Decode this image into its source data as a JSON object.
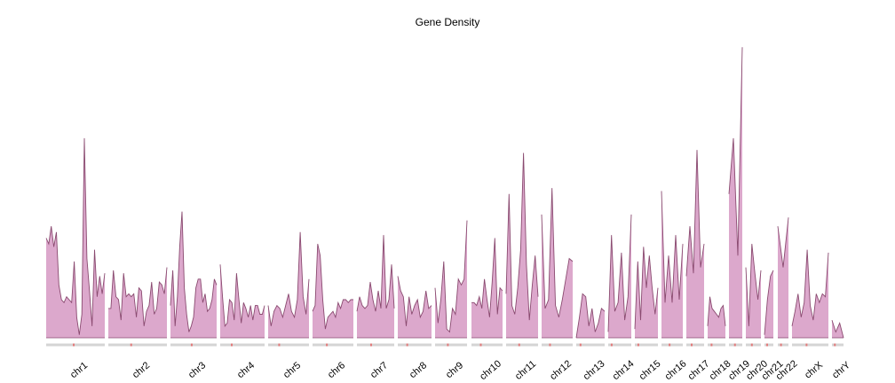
{
  "chart_data": {
    "type": "area",
    "title": "Gene Density",
    "fill_color": "#dca8cc",
    "line_color": "#8a4a70",
    "ideogram_color": "#d4d4d4",
    "centromere_color": "#e07a7a",
    "y_range": [
      0,
      1
    ],
    "chromosomes": [
      {
        "name": "chr1",
        "centromere": 0.47,
        "values": [
          0.34,
          0.32,
          0.38,
          0.31,
          0.36,
          0.18,
          0.13,
          0.12,
          0.14,
          0.13,
          0.12,
          0.26,
          0.07,
          0.01,
          0.08,
          0.68,
          0.27,
          0.16,
          0.04,
          0.3,
          0.14,
          0.21,
          0.15,
          0.22
        ]
      },
      {
        "name": "chr2",
        "centromere": 0.39,
        "values": [
          0.1,
          0.1,
          0.23,
          0.14,
          0.13,
          0.06,
          0.22,
          0.14,
          0.15,
          0.14,
          0.15,
          0.07,
          0.17,
          0.16,
          0.04,
          0.09,
          0.11,
          0.19,
          0.08,
          0.1,
          0.19,
          0.18,
          0.15,
          0.24
        ]
      },
      {
        "name": "chr3",
        "centromere": 0.46,
        "values": [
          0.11,
          0.23,
          0.04,
          0.14,
          0.31,
          0.43,
          0.17,
          0.08,
          0.02,
          0.04,
          0.07,
          0.17,
          0.2,
          0.2,
          0.12,
          0.15,
          0.09,
          0.1,
          0.13,
          0.2,
          0.18
        ]
      },
      {
        "name": "chr4",
        "centromere": 0.26,
        "values": [
          0.25,
          0.14,
          0.04,
          0.05,
          0.13,
          0.12,
          0.06,
          0.22,
          0.13,
          0.05,
          0.12,
          0.1,
          0.07,
          0.11,
          0.06,
          0.11,
          0.11,
          0.08,
          0.08,
          0.11
        ]
      },
      {
        "name": "chr5",
        "centromere": 0.27,
        "values": [
          0.11,
          0.04,
          0.09,
          0.11,
          0.1,
          0.07,
          0.11,
          0.15,
          0.09,
          0.07,
          0.13,
          0.36,
          0.14,
          0.08,
          0.2
        ]
      },
      {
        "name": "chr6",
        "centromere": 0.35,
        "values": [
          0.09,
          0.11,
          0.32,
          0.28,
          0.13,
          0.03,
          0.07,
          0.08,
          0.09,
          0.07,
          0.12,
          0.1,
          0.13,
          0.13,
          0.12,
          0.13,
          0.13
        ]
      },
      {
        "name": "chr7",
        "centromere": 0.38,
        "values": [
          0.09,
          0.14,
          0.11,
          0.1,
          0.11,
          0.19,
          0.13,
          0.09,
          0.16,
          0.1,
          0.35,
          0.1,
          0.13,
          0.25,
          0.1
        ]
      },
      {
        "name": "chr8",
        "centromere": 0.28,
        "values": [
          0.21,
          0.16,
          0.14,
          0.04,
          0.14,
          0.08,
          0.11,
          0.13,
          0.07,
          0.09,
          0.16,
          0.1,
          0.11
        ]
      },
      {
        "name": "chr9",
        "centromere": 0.4,
        "values": [
          0.17,
          0.05,
          0.13,
          0.26,
          0.03,
          0.02,
          0.1,
          0.08,
          0.2,
          0.18,
          0.2,
          0.4
        ]
      },
      {
        "name": "chr10",
        "centromere": 0.3,
        "values": [
          0.12,
          0.12,
          0.11,
          0.14,
          0.1,
          0.2,
          0.13,
          0.07,
          0.19,
          0.34,
          0.08,
          0.17,
          0.16
        ]
      },
      {
        "name": "chr11",
        "centromere": 0.41,
        "values": [
          0.15,
          0.49,
          0.11,
          0.08,
          0.17,
          0.3,
          0.63,
          0.25,
          0.06,
          0.18,
          0.28,
          0.14
        ]
      },
      {
        "name": "chr12",
        "centromere": 0.27,
        "values": [
          0.42,
          0.1,
          0.13,
          0.51,
          0.11,
          0.07,
          0.13,
          0.2,
          0.27,
          0.26
        ]
      },
      {
        "name": "chr13",
        "centromere": 0.15,
        "values": [
          0.0,
          0.07,
          0.15,
          0.14,
          0.04,
          0.1,
          0.02,
          0.05,
          0.1,
          0.09
        ]
      },
      {
        "name": "chr14",
        "centromere": 0.15,
        "values": [
          0.02,
          0.35,
          0.09,
          0.12,
          0.29,
          0.06,
          0.14,
          0.42
        ]
      },
      {
        "name": "chr15",
        "centromere": 0.15,
        "values": [
          0.03,
          0.26,
          0.06,
          0.31,
          0.17,
          0.28,
          0.17,
          0.08,
          0.17
        ]
      },
      {
        "name": "chr16",
        "centromere": 0.38,
        "values": [
          0.5,
          0.12,
          0.28,
          0.12,
          0.35,
          0.13,
          0.32
        ]
      },
      {
        "name": "chr17",
        "centromere": 0.3,
        "values": [
          0.21,
          0.38,
          0.22,
          0.64,
          0.24,
          0.32
        ]
      },
      {
        "name": "chr18",
        "centromere": 0.22,
        "values": [
          0.04,
          0.14,
          0.1,
          0.09,
          0.08,
          0.07,
          0.1,
          0.11,
          0.04
        ]
      },
      {
        "name": "chr19",
        "centromere": 0.45,
        "values": [
          0.49,
          0.68,
          0.28,
          0.99
        ]
      },
      {
        "name": "chr20",
        "centromere": 0.4,
        "values": [
          0.24,
          0.04,
          0.32,
          0.22,
          0.13,
          0.23
        ]
      },
      {
        "name": "chr21",
        "centromere": 0.3,
        "values": [
          0.01,
          0.13,
          0.21,
          0.23
        ]
      },
      {
        "name": "chr22",
        "centromere": 0.3,
        "values": [
          0.38,
          0.24,
          0.41
        ]
      },
      {
        "name": "chrX",
        "centromere": 0.4,
        "values": [
          0.04,
          0.09,
          0.15,
          0.07,
          0.12,
          0.3,
          0.11,
          0.06,
          0.15,
          0.12,
          0.15,
          0.14,
          0.29
        ]
      },
      {
        "name": "chrY",
        "centromere": 0.25,
        "values": [
          0.06,
          0.02,
          0.05,
          0.0
        ]
      }
    ]
  }
}
